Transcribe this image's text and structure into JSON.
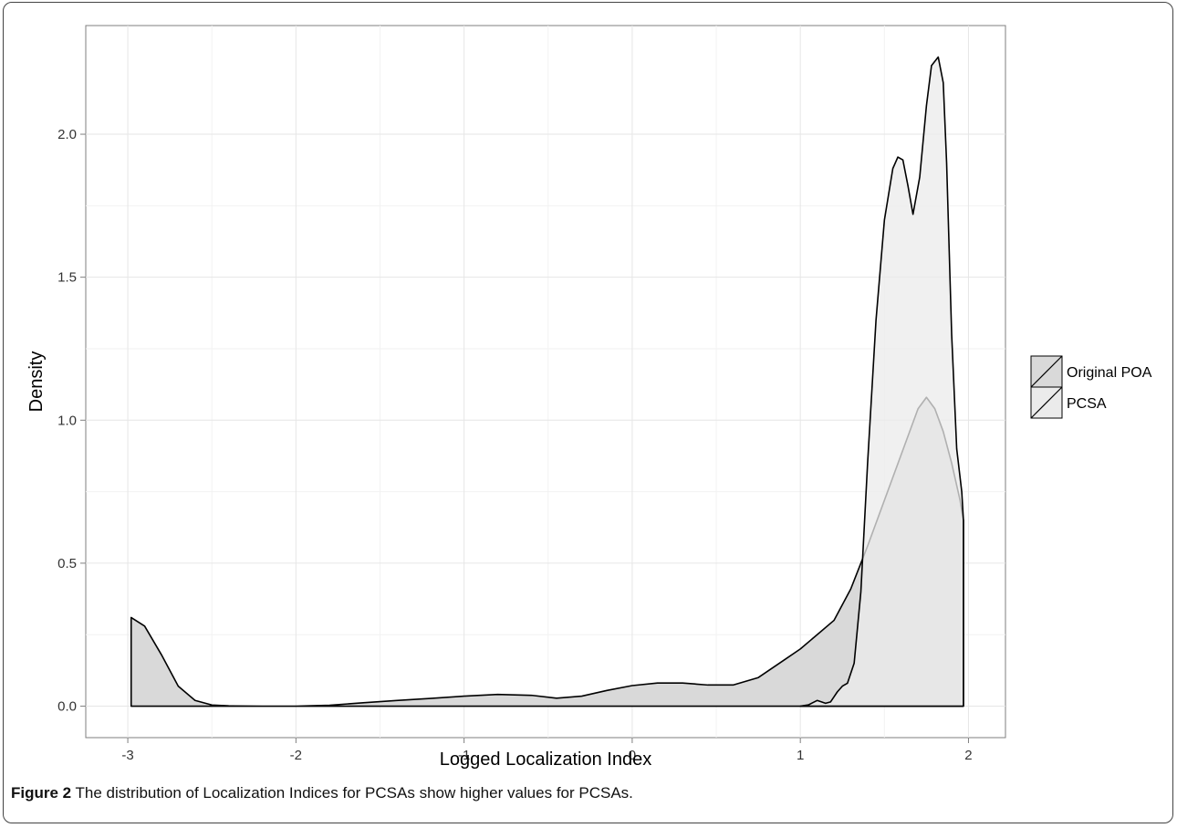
{
  "chart_data": {
    "type": "area",
    "xlabel": "Logged Localization Index",
    "ylabel": "Density",
    "xlim": [
      -3.25,
      2.22
    ],
    "ylim": [
      -0.11,
      2.38
    ],
    "x_ticks": [
      -3,
      -2,
      -1,
      0,
      1,
      2
    ],
    "y_ticks": [
      0.0,
      0.5,
      1.0,
      1.5,
      2.0
    ],
    "x_tick_labels": [
      "-3",
      "-2",
      "-1",
      "0",
      "1",
      "2"
    ],
    "y_tick_labels": [
      "0.0",
      "0.5",
      "1.0",
      "1.5",
      "2.0"
    ],
    "grid": true,
    "legend_position": "right",
    "series": [
      {
        "name": "Original POA",
        "fill": "#d9d9d9",
        "stroke": "#000000",
        "x": [
          -2.98,
          -2.9,
          -2.8,
          -2.7,
          -2.6,
          -2.5,
          -2.4,
          -2.2,
          -2.0,
          -1.8,
          -1.6,
          -1.4,
          -1.2,
          -1.0,
          -0.8,
          -0.6,
          -0.45,
          -0.3,
          -0.15,
          0.0,
          0.15,
          0.3,
          0.45,
          0.6,
          0.75,
          0.9,
          1.0,
          1.1,
          1.2,
          1.3,
          1.4,
          1.5,
          1.6,
          1.7,
          1.75,
          1.8,
          1.85,
          1.9,
          1.95,
          1.97
        ],
        "y": [
          0.31,
          0.28,
          0.18,
          0.07,
          0.02,
          0.004,
          0.001,
          0.0,
          0.0,
          0.003,
          0.012,
          0.02,
          0.027,
          0.035,
          0.041,
          0.038,
          0.028,
          0.035,
          0.055,
          0.072,
          0.081,
          0.081,
          0.074,
          0.074,
          0.1,
          0.16,
          0.2,
          0.25,
          0.3,
          0.41,
          0.56,
          0.72,
          0.88,
          1.04,
          1.08,
          1.04,
          0.96,
          0.85,
          0.72,
          0.65
        ]
      },
      {
        "name": "PCSA",
        "fill": "#ebebeb",
        "stroke": "#000000",
        "x": [
          1.0,
          1.05,
          1.1,
          1.15,
          1.18,
          1.22,
          1.25,
          1.28,
          1.32,
          1.36,
          1.4,
          1.45,
          1.5,
          1.55,
          1.58,
          1.61,
          1.64,
          1.67,
          1.71,
          1.75,
          1.78,
          1.82,
          1.85,
          1.87,
          1.9,
          1.93,
          1.96,
          1.97
        ],
        "y": [
          0.0,
          0.005,
          0.02,
          0.01,
          0.015,
          0.05,
          0.07,
          0.08,
          0.15,
          0.4,
          0.85,
          1.35,
          1.7,
          1.88,
          1.92,
          1.91,
          1.82,
          1.72,
          1.85,
          2.1,
          2.24,
          2.27,
          2.18,
          1.9,
          1.3,
          0.9,
          0.75,
          0.65
        ]
      }
    ]
  },
  "caption": {
    "label": "Figure 2",
    "text": " The distribution of Localization Indices for PCSAs show higher values for PCSAs."
  }
}
